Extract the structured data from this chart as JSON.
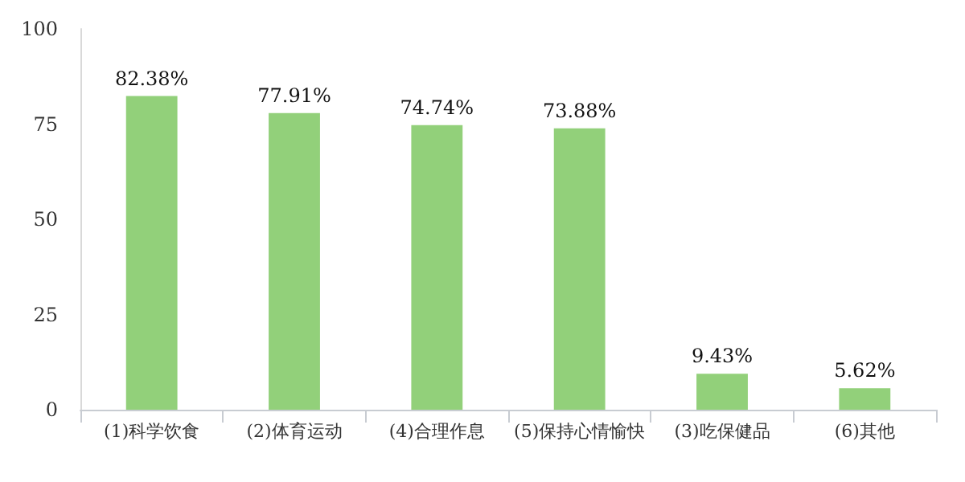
{
  "chart_data": {
    "type": "bar",
    "categories": [
      "(1)科学饮食",
      "(2)体育运动",
      "(4)合理作息",
      "(5)保持心情愉快",
      "(3)吃保健品",
      "(6)其他"
    ],
    "values": [
      82.38,
      77.91,
      74.74,
      73.88,
      9.43,
      5.62
    ],
    "value_labels": [
      "82.38%",
      "77.91%",
      "74.74%",
      "73.88%",
      "9.43%",
      "5.62%"
    ],
    "color": "#92d07a",
    "ylim": [
      0,
      100
    ],
    "yticks": [
      0,
      25,
      50,
      75,
      100
    ]
  }
}
